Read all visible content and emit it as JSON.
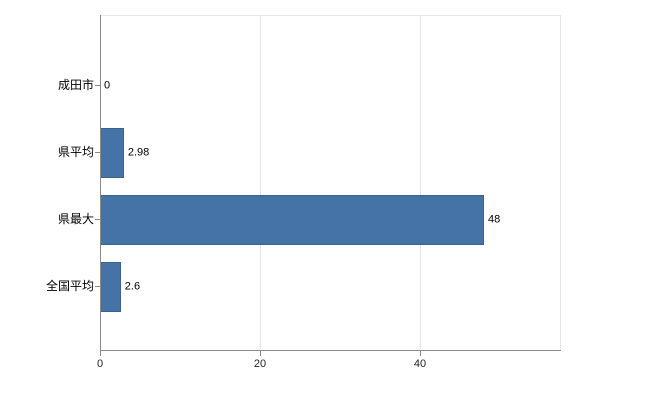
{
  "chart_data": {
    "type": "bar",
    "orientation": "horizontal",
    "categories": [
      "成田市",
      "県平均",
      "県最大",
      "全国平均"
    ],
    "values": [
      0,
      2.98,
      48,
      2.6
    ],
    "value_labels": [
      "0",
      "2.98",
      "48",
      "2.6"
    ],
    "xlim": [
      0,
      57.5
    ],
    "xticks": [
      0,
      20,
      40
    ],
    "xtick_labels": [
      "0",
      "20",
      "40"
    ],
    "grid": true,
    "legend_position": "none",
    "bar_color": "#4673a7",
    "bar_border_color": "#3b6190",
    "gridline_color": "#e6e6e6",
    "axis_color": "#8a8a8a"
  }
}
